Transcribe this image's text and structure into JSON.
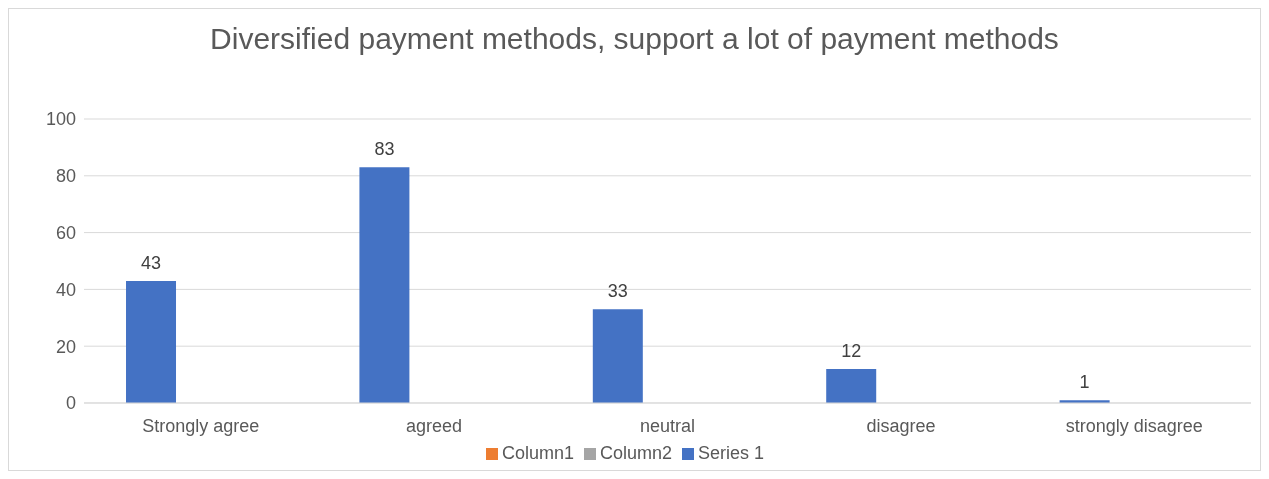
{
  "chart_data": {
    "type": "bar",
    "title": "Diversified payment methods, support a lot of payment methods",
    "categories": [
      "Strongly agree",
      "agreed",
      "neutral",
      "disagree",
      "strongly disagree"
    ],
    "series": [
      {
        "name": "Series 1",
        "color": "#4472c4",
        "values": [
          43,
          83,
          33,
          12,
          1
        ]
      },
      {
        "name": "Column1",
        "color": "#ed7d31",
        "values": [
          null,
          null,
          null,
          null,
          null
        ]
      },
      {
        "name": "Column2",
        "color": "#a5a5a5",
        "values": [
          null,
          null,
          null,
          null,
          null
        ]
      }
    ],
    "ylim": [
      0,
      100
    ],
    "yticks": [
      0,
      20,
      40,
      60,
      80,
      100
    ],
    "grid": "y",
    "legend": "bottom",
    "data_labels": true
  }
}
